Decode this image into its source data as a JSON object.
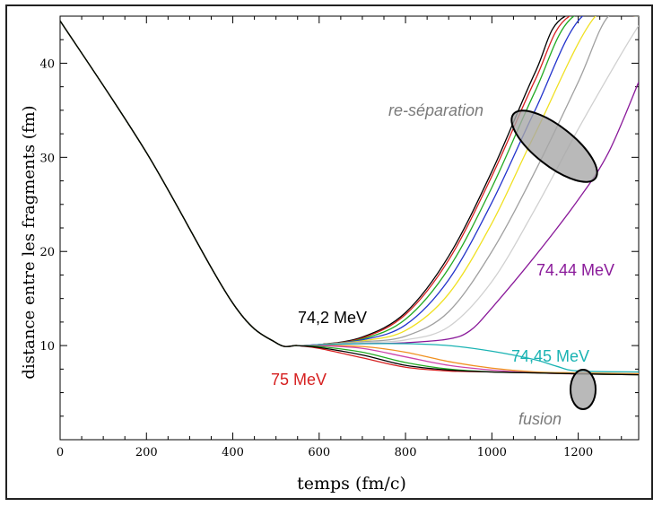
{
  "chart_data": {
    "type": "line",
    "title": "",
    "xlabel": "temps (fm/c)",
    "ylabel": "distance entre les fragments (fm)",
    "xlim": [
      0,
      1340
    ],
    "ylim": [
      0,
      45
    ],
    "xticks": [
      0,
      200,
      400,
      600,
      800,
      1000,
      1200
    ],
    "yticks": [
      10,
      20,
      30,
      40
    ],
    "grid": false,
    "annotations": {
      "low_energy": {
        "text": "74,2 MeV",
        "color": "#000000"
      },
      "high_energy": {
        "text": "75 MeV",
        "color": "#d62020"
      },
      "last_separation": {
        "text": "74.44 MeV",
        "color": "#8a1a9a"
      },
      "first_fusion": {
        "text": "74,45 MeV",
        "color": "#1ab3b3"
      },
      "reseparation": {
        "text": "re-séparation",
        "color": "#7a7a7a"
      },
      "fusion": {
        "text": "fusion",
        "color": "#7a7a7a"
      }
    },
    "series": [
      {
        "color": "#000000",
        "x": [
          0,
          200,
          400,
          500,
          550,
          600,
          700,
          800,
          900,
          1000,
          1100,
          1170,
          1340
        ],
        "y": [
          44.5,
          30.5,
          14.5,
          10.3,
          10.0,
          10.1,
          10.9,
          13.5,
          19.5,
          28.5,
          39.0,
          45.0,
          45.0
        ]
      },
      {
        "color": "#d62020",
        "x": [
          0,
          200,
          400,
          500,
          550,
          600,
          700,
          800,
          900,
          1000,
          1100,
          1180,
          1340
        ],
        "y": [
          44.5,
          30.5,
          14.5,
          10.3,
          10.0,
          10.1,
          10.8,
          13.3,
          19.1,
          28.0,
          38.2,
          45.0,
          45.0
        ]
      },
      {
        "color": "#d62020",
        "x": [
          0,
          200,
          400,
          500,
          550,
          600,
          700,
          800,
          900,
          1000,
          1100,
          1200,
          1340
        ],
        "y": [
          44.5,
          30.5,
          14.5,
          10.3,
          10.0,
          9.7,
          8.7,
          7.7,
          7.3,
          7.2,
          7.1,
          7.0,
          7.0
        ]
      },
      {
        "color": "#22aa22",
        "x": [
          0,
          200,
          400,
          500,
          550,
          600,
          700,
          800,
          900,
          1000,
          1100,
          1190,
          1340
        ],
        "y": [
          44.5,
          30.5,
          14.5,
          10.3,
          10.0,
          10.1,
          10.7,
          12.8,
          18.2,
          26.8,
          37.0,
          45.0,
          45.0
        ]
      },
      {
        "color": "#2233cc",
        "x": [
          0,
          200,
          400,
          500,
          550,
          600,
          700,
          800,
          900,
          1000,
          1100,
          1210,
          1340
        ],
        "y": [
          44.5,
          30.5,
          14.5,
          10.3,
          10.0,
          10.1,
          10.6,
          12.2,
          17.0,
          25.2,
          35.0,
          45.0,
          45.0
        ]
      },
      {
        "color": "#f0e020",
        "x": [
          0,
          200,
          400,
          500,
          550,
          600,
          700,
          800,
          900,
          1000,
          1100,
          1240,
          1340
        ],
        "y": [
          44.5,
          30.5,
          14.5,
          10.3,
          10.0,
          10.1,
          10.5,
          11.6,
          15.5,
          23.0,
          32.5,
          45.0,
          45.0
        ]
      },
      {
        "color": "#a0a0a0",
        "x": [
          0,
          200,
          400,
          500,
          550,
          600,
          700,
          800,
          900,
          1000,
          1100,
          1200,
          1270,
          1340
        ],
        "y": [
          44.5,
          30.5,
          14.5,
          10.3,
          10.0,
          10.1,
          10.4,
          11.0,
          13.6,
          20.0,
          28.5,
          38.0,
          45.0,
          45.0
        ]
      },
      {
        "color": "#d0d0d0",
        "x": [
          0,
          200,
          400,
          500,
          550,
          600,
          700,
          800,
          900,
          1000,
          1100,
          1200,
          1300,
          1340
        ],
        "y": [
          44.5,
          30.5,
          14.5,
          10.3,
          10.0,
          10.1,
          10.3,
          10.6,
          12.0,
          16.8,
          24.5,
          33.0,
          41.0,
          44.0
        ]
      },
      {
        "color": "#8a1a9a",
        "x": [
          0,
          200,
          400,
          500,
          550,
          600,
          700,
          800,
          900,
          950,
          1000,
          1100,
          1200,
          1270,
          1340
        ],
        "y": [
          44.5,
          30.5,
          14.5,
          10.3,
          10.0,
          10.1,
          10.2,
          10.3,
          10.7,
          11.6,
          14.0,
          19.5,
          25.5,
          30.5,
          38.0
        ]
      },
      {
        "color": "#1ab3b3",
        "x": [
          0,
          200,
          400,
          500,
          550,
          600,
          700,
          800,
          900,
          1000,
          1100,
          1150,
          1200,
          1340
        ],
        "y": [
          44.5,
          30.5,
          14.5,
          10.3,
          10.0,
          10.1,
          10.2,
          10.2,
          10.0,
          9.4,
          8.5,
          7.8,
          7.3,
          7.2
        ]
      },
      {
        "color": "#f09020",
        "x": [
          0,
          200,
          400,
          500,
          550,
          600,
          700,
          800,
          900,
          1000,
          1100,
          1200,
          1340
        ],
        "y": [
          44.5,
          30.5,
          14.5,
          10.3,
          10.0,
          10.0,
          9.9,
          9.3,
          8.3,
          7.6,
          7.2,
          7.1,
          7.0
        ]
      },
      {
        "color": "#cc44aa",
        "x": [
          0,
          200,
          400,
          500,
          550,
          600,
          700,
          800,
          900,
          1000,
          1100,
          1200,
          1340
        ],
        "y": [
          44.5,
          30.5,
          14.5,
          10.3,
          10.0,
          10.0,
          9.7,
          8.8,
          7.9,
          7.4,
          7.1,
          7.0,
          6.9
        ]
      },
      {
        "color": "#22aa22",
        "x": [
          0,
          200,
          400,
          500,
          550,
          600,
          700,
          800,
          900,
          1000,
          1100,
          1200,
          1340
        ],
        "y": [
          44.5,
          30.5,
          14.5,
          10.3,
          10.0,
          9.9,
          9.3,
          8.2,
          7.5,
          7.2,
          7.1,
          7.0,
          6.9
        ]
      },
      {
        "color": "#000000",
        "x": [
          0,
          200,
          400,
          500,
          550,
          600,
          700,
          800,
          900,
          1000,
          1100,
          1200,
          1340
        ],
        "y": [
          44.5,
          30.5,
          14.5,
          10.3,
          10.0,
          9.8,
          9.0,
          7.9,
          7.4,
          7.2,
          7.1,
          7.0,
          6.9
        ]
      }
    ]
  }
}
